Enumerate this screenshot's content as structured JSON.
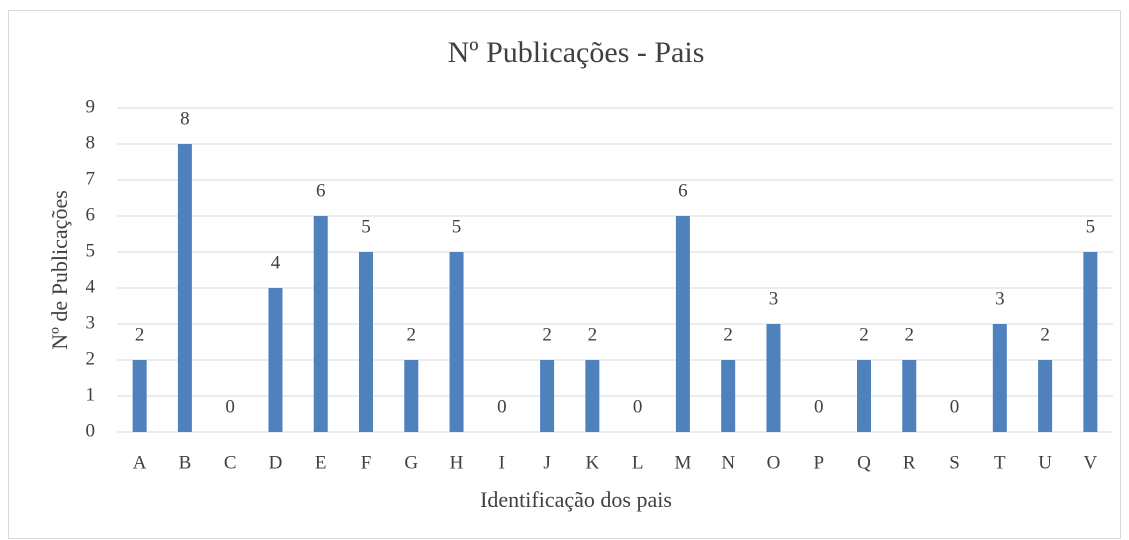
{
  "chart_data": {
    "type": "bar",
    "title": "Nº Publicações - Pais",
    "x_label": "Identificação dos pais",
    "y_label": "Nº de Publicações",
    "categories": [
      "A",
      "B",
      "C",
      "D",
      "E",
      "F",
      "G",
      "H",
      "I",
      "J",
      "K",
      "L",
      "M",
      "N",
      "O",
      "P",
      "Q",
      "R",
      "S",
      "T",
      "U",
      "V"
    ],
    "values": [
      2,
      8,
      0,
      4,
      6,
      5,
      2,
      5,
      0,
      2,
      2,
      0,
      6,
      2,
      3,
      0,
      2,
      2,
      0,
      3,
      2,
      5
    ],
    "color": "#4f81bd",
    "ylim": [
      0,
      9
    ],
    "yticks": [
      0,
      1,
      2,
      3,
      4,
      5,
      6,
      7,
      8,
      9
    ],
    "grid": true
  }
}
